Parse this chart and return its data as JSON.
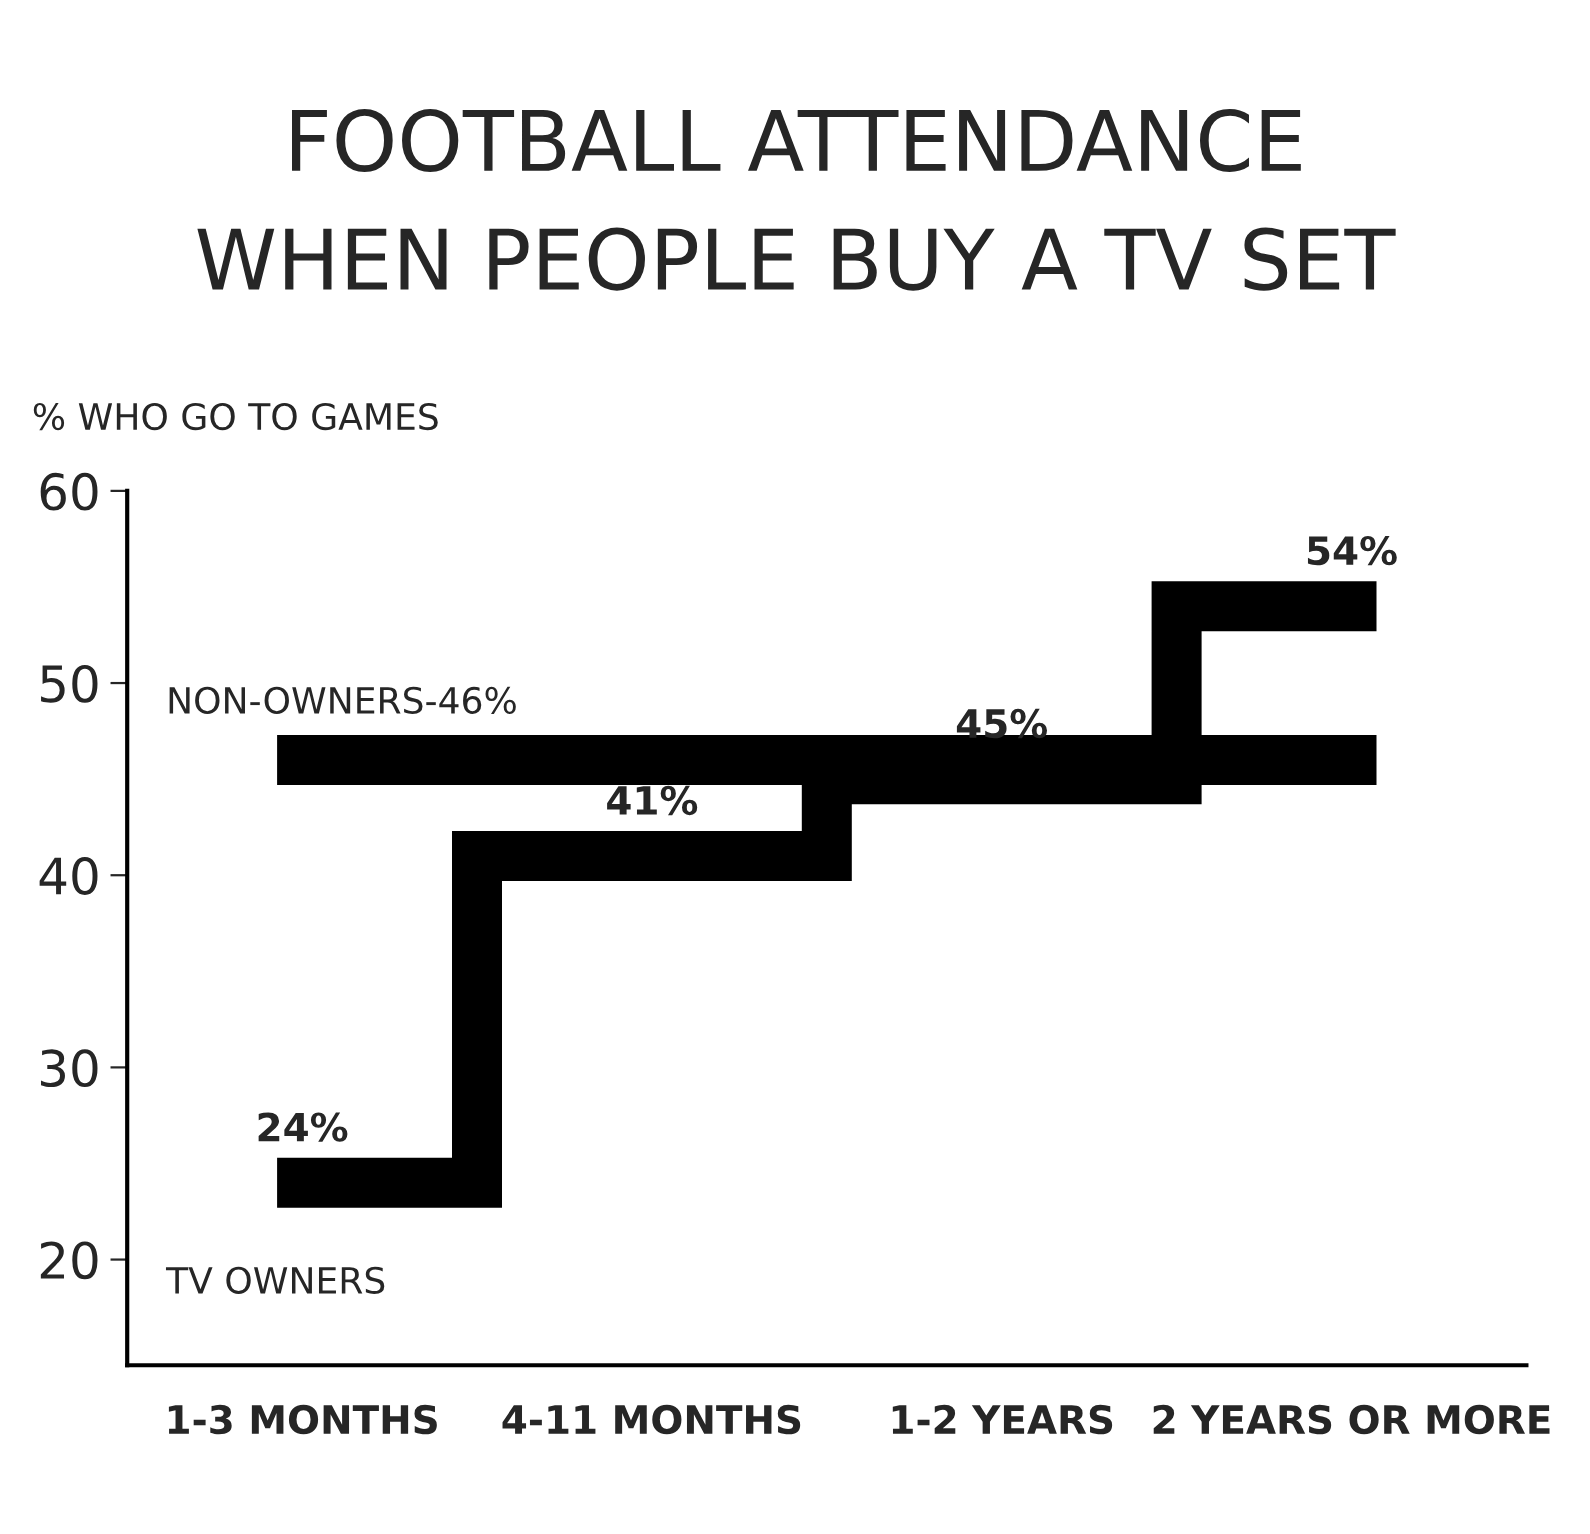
{
  "chart_data": {
    "type": "step",
    "title": "FOOTBALL ATTENDANCE\nWHEN PEOPLE BUY A TV SET",
    "ylabel": "% WHO GO TO GAMES",
    "categories": [
      "1-3 MONTHS",
      "4-11 MONTHS",
      "1-2 YEARS",
      "2 YEARS OR MORE"
    ],
    "series": [
      {
        "name": "NON-OWNERS-46%",
        "color": "#000000",
        "values": [
          46,
          46,
          46,
          46
        ]
      },
      {
        "name": "TV OWNERS",
        "color": "#000000",
        "values": [
          24,
          41,
          45,
          54
        ],
        "value_labels": [
          "24%",
          "41%",
          "45%",
          "54%"
        ]
      }
    ],
    "ylim": [
      14.5,
      60
    ],
    "yticks": [
      20,
      30,
      40,
      50,
      60
    ],
    "grid": false,
    "legend": false
  }
}
